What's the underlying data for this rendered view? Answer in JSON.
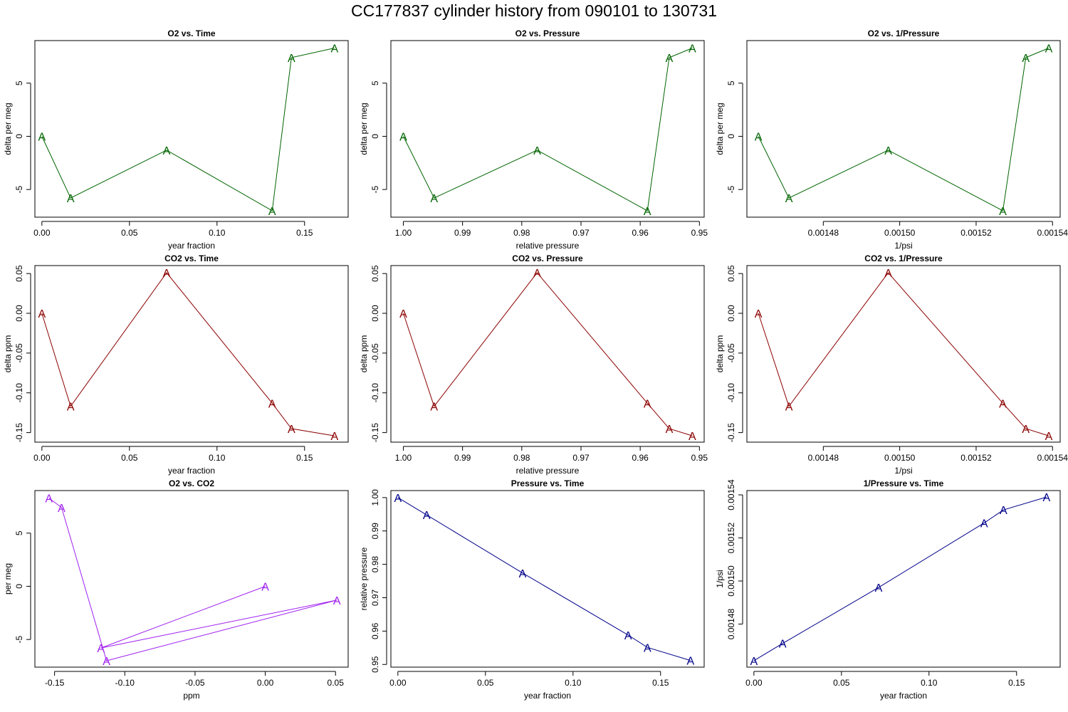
{
  "page": {
    "title": "CC177837   cylinder history from  090101  to  130731"
  },
  "chart_data": [
    {
      "type": "line",
      "title": "O2 vs. Time",
      "xlabel": "year fraction",
      "ylabel": "delta per meg",
      "color": "#006400",
      "marker": "A",
      "x": [
        0.0,
        0.0164,
        0.0712,
        0.1315,
        0.1425,
        0.1671
      ],
      "y": [
        0.0,
        -5.8,
        -1.3,
        -7.0,
        7.4,
        8.3
      ],
      "xlim": [
        -0.004,
        0.1749
      ],
      "ylim": [
        -7.6,
        9.0
      ],
      "xticks": [
        0.0,
        0.05,
        0.1,
        0.15
      ],
      "xticklabels": [
        "0.00",
        "0.05",
        "0.10",
        "0.15"
      ],
      "yticks": [
        -5,
        0,
        5
      ],
      "yticklabels": [
        "-5",
        "0",
        "5"
      ]
    },
    {
      "type": "line",
      "title": "O2 vs. Pressure",
      "xlabel": "relative pressure",
      "ylabel": "delta per meg",
      "color": "#006400",
      "marker": "A",
      "x": [
        1.0,
        0.9948,
        0.9774,
        0.9588,
        0.9551,
        0.9512
      ],
      "y": [
        0.0,
        -5.8,
        -1.3,
        -7.0,
        7.4,
        8.3
      ],
      "xlim": [
        1.0021,
        0.9492
      ],
      "ylim": [
        -7.6,
        9.0
      ],
      "xticks": [
        1.0,
        0.99,
        0.98,
        0.97,
        0.96,
        0.95
      ],
      "xticklabels": [
        "1.00",
        "0.99",
        "0.98",
        "0.97",
        "0.96",
        "0.95"
      ],
      "yticks": [
        -5,
        0,
        5
      ],
      "yticklabels": [
        "-5",
        "0",
        "5"
      ]
    },
    {
      "type": "line",
      "title": "O2 vs. 1/Pressure",
      "xlabel": "1/psi",
      "ylabel": "delta per meg",
      "color": "#006400",
      "marker": "A",
      "x": [
        0.001463,
        0.001471,
        0.001497,
        0.001527,
        0.001533,
        0.001539
      ],
      "y": [
        0.0,
        -5.8,
        -1.3,
        -7.0,
        7.4,
        8.3
      ],
      "xlim": [
        0.00146,
        0.001542
      ],
      "ylim": [
        -7.6,
        9.0
      ],
      "xticks": [
        0.00148,
        0.0015,
        0.00152,
        0.00154
      ],
      "xticklabels": [
        "0.00148",
        "0.00150",
        "0.00152",
        "0.00154"
      ],
      "yticks": [
        -5,
        0,
        5
      ],
      "yticklabels": [
        "-5",
        "0",
        "5"
      ]
    },
    {
      "type": "line",
      "title": "CO2 vs. Time",
      "xlabel": "year fraction",
      "ylabel": "delta ppm",
      "color": "#8b0000",
      "marker": "A",
      "x": [
        0.0,
        0.0164,
        0.0712,
        0.1315,
        0.1425,
        0.1671
      ],
      "y": [
        0.0,
        -0.117,
        0.051,
        -0.113,
        -0.145,
        -0.154
      ],
      "xlim": [
        -0.004,
        0.1749
      ],
      "ylim": [
        -0.162,
        0.06
      ],
      "xticks": [
        0.0,
        0.05,
        0.1,
        0.15
      ],
      "xticklabels": [
        "0.00",
        "0.05",
        "0.10",
        "0.15"
      ],
      "yticks": [
        -0.15,
        -0.1,
        -0.05,
        0.0,
        0.05
      ],
      "yticklabels": [
        "-0.15",
        "-0.10",
        "-0.05",
        "0.00",
        "0.05"
      ]
    },
    {
      "type": "line",
      "title": "CO2 vs. Pressure",
      "xlabel": "relative pressure",
      "ylabel": "delta ppm",
      "color": "#8b0000",
      "marker": "A",
      "x": [
        1.0,
        0.9948,
        0.9774,
        0.9588,
        0.9551,
        0.9512
      ],
      "y": [
        0.0,
        -0.117,
        0.051,
        -0.113,
        -0.145,
        -0.154
      ],
      "xlim": [
        1.0021,
        0.9492
      ],
      "ylim": [
        -0.162,
        0.06
      ],
      "xticks": [
        1.0,
        0.99,
        0.98,
        0.97,
        0.96,
        0.95
      ],
      "xticklabels": [
        "1.00",
        "0.99",
        "0.98",
        "0.97",
        "0.96",
        "0.95"
      ],
      "yticks": [
        -0.15,
        -0.1,
        -0.05,
        0.0,
        0.05
      ],
      "yticklabels": [
        "-0.15",
        "-0.10",
        "-0.05",
        "0.00",
        "0.05"
      ]
    },
    {
      "type": "line",
      "title": "CO2 vs. 1/Pressure",
      "xlabel": "1/psi",
      "ylabel": "delta ppm",
      "color": "#8b0000",
      "marker": "A",
      "x": [
        0.001463,
        0.001471,
        0.001497,
        0.001527,
        0.001533,
        0.001539
      ],
      "y": [
        0.0,
        -0.117,
        0.051,
        -0.113,
        -0.145,
        -0.154
      ],
      "xlim": [
        0.00146,
        0.001542
      ],
      "ylim": [
        -0.162,
        0.06
      ],
      "xticks": [
        0.00148,
        0.0015,
        0.00152,
        0.00154
      ],
      "xticklabels": [
        "0.00148",
        "0.00150",
        "0.00152",
        "0.00154"
      ],
      "yticks": [
        -0.15,
        -0.1,
        -0.05,
        0.0,
        0.05
      ],
      "yticklabels": [
        "-0.15",
        "-0.10",
        "-0.05",
        "0.00",
        "0.05"
      ]
    },
    {
      "type": "line",
      "title": "O2 vs. CO2",
      "xlabel": "ppm",
      "ylabel": "per meg",
      "color": "#a020f0",
      "marker": "A",
      "x": [
        0.0,
        -0.117,
        0.051,
        -0.113,
        -0.145,
        -0.154
      ],
      "y": [
        0.0,
        -5.8,
        -1.3,
        -7.0,
        7.4,
        8.3
      ],
      "xlim": [
        -0.164,
        0.059
      ],
      "ylim": [
        -7.6,
        9.0
      ],
      "xticks": [
        -0.15,
        -0.1,
        -0.05,
        0.0,
        0.05
      ],
      "xticklabels": [
        "-0.15",
        "-0.10",
        "-0.05",
        "0.00",
        "0.05"
      ],
      "yticks": [
        -5,
        0,
        5
      ],
      "yticklabels": [
        "-5",
        "0",
        "5"
      ]
    },
    {
      "type": "line",
      "title": "Pressure vs. Time",
      "xlabel": "year fraction",
      "ylabel": "relative pressure",
      "color": "#00008b",
      "marker": "A",
      "x": [
        0.0,
        0.0164,
        0.0712,
        0.1315,
        0.1425,
        0.1671
      ],
      "y": [
        1.0,
        0.9948,
        0.9774,
        0.9588,
        0.9551,
        0.9512
      ],
      "xlim": [
        -0.004,
        0.1749
      ],
      "ylim": [
        0.9492,
        1.0021
      ],
      "xticks": [
        0.0,
        0.05,
        0.1,
        0.15
      ],
      "xticklabels": [
        "0.00",
        "0.05",
        "0.10",
        "0.15"
      ],
      "yticks": [
        0.95,
        0.96,
        0.97,
        0.98,
        0.99,
        1.0
      ],
      "yticklabels": [
        "0.95",
        "0.96",
        "0.97",
        "0.98",
        "0.99",
        "1.00"
      ]
    },
    {
      "type": "line",
      "title": "1/Pressure vs. Time",
      "xlabel": "year fraction",
      "ylabel": "1/psi",
      "color": "#00008b",
      "marker": "A",
      "x": [
        0.0,
        0.0164,
        0.0712,
        0.1315,
        0.1425,
        0.1671
      ],
      "y": [
        0.001463,
        0.001471,
        0.001497,
        0.001527,
        0.001533,
        0.001539
      ],
      "xlim": [
        -0.004,
        0.1749
      ],
      "ylim": [
        0.00146,
        0.001542
      ],
      "xticks": [
        0.0,
        0.05,
        0.1,
        0.15
      ],
      "xticklabels": [
        "0.00",
        "0.05",
        "0.10",
        "0.15"
      ],
      "yticks": [
        0.00148,
        0.0015,
        0.00152,
        0.00154
      ],
      "yticklabels": [
        "0.00148",
        "0.00150",
        "0.00152",
        "0.00154"
      ]
    }
  ]
}
